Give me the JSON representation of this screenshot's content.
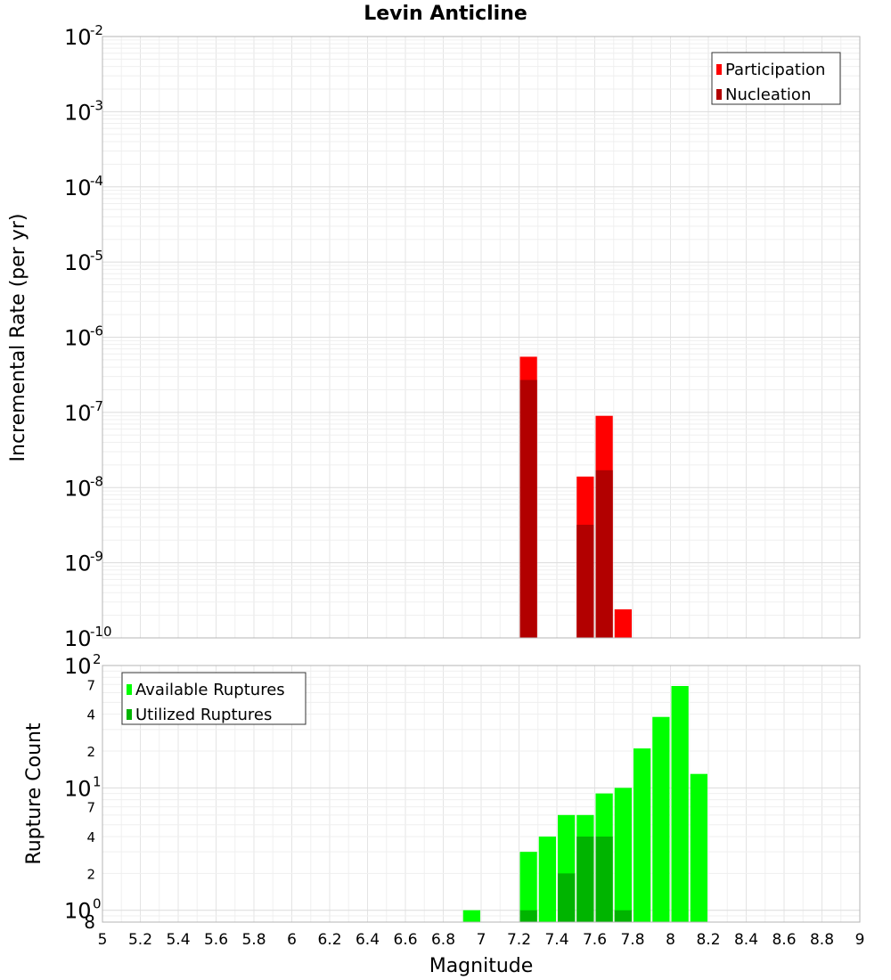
{
  "chart_data": [
    {
      "type": "bar",
      "title": "Levin Anticline",
      "ylabel": "Incremental Rate (per yr)",
      "xlabel": "",
      "x_range": [
        5,
        9
      ],
      "y_scale": "log",
      "ylim": [
        1e-10,
        0.01
      ],
      "y_ticks": [
        {
          "base": "10",
          "exp": "-10"
        },
        {
          "base": "10",
          "exp": "-9"
        },
        {
          "base": "10",
          "exp": "-8"
        },
        {
          "base": "10",
          "exp": "-7"
        },
        {
          "base": "10",
          "exp": "-6"
        },
        {
          "base": "10",
          "exp": "-5"
        },
        {
          "base": "10",
          "exp": "-4"
        },
        {
          "base": "10",
          "exp": "-3"
        },
        {
          "base": "10",
          "exp": "-2"
        }
      ],
      "grid": true,
      "legend_position": "top-right",
      "bin_width": 0.1,
      "series": [
        {
          "name": "Participation",
          "color": "#ff0000",
          "x": [
            7.25,
            7.55,
            7.65,
            7.75
          ],
          "values": [
            5.5e-07,
            1.4e-08,
            9e-08,
            2.4e-10
          ]
        },
        {
          "name": "Nucleation",
          "color": "#b20000",
          "x": [
            7.25,
            7.55,
            7.65
          ],
          "values": [
            2.7e-07,
            3.2e-09,
            1.7e-08
          ]
        }
      ]
    },
    {
      "type": "bar",
      "title": "",
      "ylabel": "Rupture Count",
      "xlabel": "Magnitude",
      "x_range": [
        5,
        9
      ],
      "x_ticks": [
        "5",
        "5.2",
        "5.4",
        "5.6",
        "5.8",
        "6",
        "6.2",
        "6.4",
        "6.6",
        "6.8",
        "7",
        "7.2",
        "7.4",
        "7.6",
        "7.8",
        "8",
        "8.2",
        "8.4",
        "8.6",
        "8.8",
        "9"
      ],
      "y_scale": "log",
      "ylim": [
        0.8,
        100
      ],
      "y_ticks": [
        {
          "base": "10",
          "exp": "0",
          "value": 1
        },
        {
          "base": "10",
          "exp": "1",
          "value": 10
        },
        {
          "base": "10",
          "exp": "2",
          "value": 100
        }
      ],
      "y_minor_labels": [
        "8",
        "2",
        "4",
        "7",
        "2",
        "4",
        "7"
      ],
      "grid": true,
      "legend_position": "top-left",
      "bin_width": 0.1,
      "series": [
        {
          "name": "Available Ruptures",
          "color": "#00ff00",
          "x": [
            6.95,
            7.25,
            7.35,
            7.45,
            7.55,
            7.65,
            7.75,
            7.85,
            7.95,
            8.05,
            8.15
          ],
          "values": [
            1,
            3,
            4,
            6,
            6,
            9,
            10,
            21,
            38,
            68,
            13
          ]
        },
        {
          "name": "Utilized Ruptures",
          "color": "#00b400",
          "x": [
            7.25,
            7.45,
            7.55,
            7.65,
            7.75
          ],
          "values": [
            1,
            2,
            4,
            4,
            1
          ]
        }
      ]
    }
  ]
}
